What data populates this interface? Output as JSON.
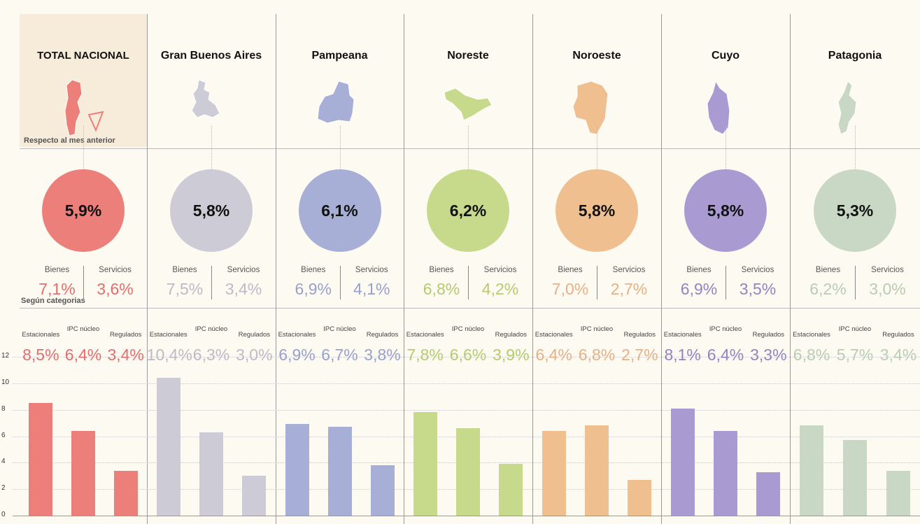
{
  "notes": {
    "monthly": "Respecto al mes anterior",
    "categories": "Según categorias"
  },
  "labels": {
    "bienes": "Bienes",
    "servicios": "Servicios",
    "estacionales": "Estacionales",
    "ipc_nucleo": "IPC núcleo",
    "regulados": "Regulados"
  },
  "regions": [
    {
      "name": "TOTAL NACIONAL",
      "color": "#ec7f7a",
      "text_color": "#e46d6d",
      "total": "5,9%",
      "bienes": "7,1%",
      "servicios": "3,6%",
      "estacionales": "8,5%",
      "nucleo": "6,4%",
      "regulados": "3,4%"
    },
    {
      "name": "Gran Buenos Aires",
      "color": "#cdcbd6",
      "text_color": "#bdbac8",
      "total": "5,8%",
      "bienes": "7,5%",
      "servicios": "3,4%",
      "estacionales": "10,4%",
      "nucleo": "6,3%",
      "regulados": "3,0%"
    },
    {
      "name": "Pampeana",
      "color": "#a8afd6",
      "text_color": "#98a0cc",
      "total": "6,1%",
      "bienes": "6,9%",
      "servicios": "4,1%",
      "estacionales": "6,9%",
      "nucleo": "6,7%",
      "regulados": "3,8%"
    },
    {
      "name": "Noreste",
      "color": "#c7da8c",
      "text_color": "#b5cb70",
      "total": "6,2%",
      "bienes": "6,8%",
      "servicios": "4,2%",
      "estacionales": "7,8%",
      "nucleo": "6,6%",
      "regulados": "3,9%"
    },
    {
      "name": "Noroeste",
      "color": "#efbf90",
      "text_color": "#e6b184",
      "total": "5,8%",
      "bienes": "7,0%",
      "servicios": "2,7%",
      "estacionales": "6,4%",
      "nucleo": "6,8%",
      "regulados": "2,7%"
    },
    {
      "name": "Cuyo",
      "color": "#a99bd2",
      "text_color": "#9283c4",
      "total": "5,8%",
      "bienes": "6,9%",
      "servicios": "3,5%",
      "estacionales": "8,1%",
      "nucleo": "6,4%",
      "regulados": "3,3%"
    },
    {
      "name": "Patagonia",
      "color": "#c9d8c4",
      "text_color": "#b9ccb4",
      "total": "5,3%",
      "bienes": "6,2%",
      "servicios": "3,0%",
      "estacionales": "6,8%",
      "nucleo": "5,7%",
      "regulados": "3,4%"
    }
  ],
  "chart_data": {
    "type": "bar",
    "categories": [
      "Estacionales",
      "IPC núcleo",
      "Regulados"
    ],
    "series": [
      {
        "name": "TOTAL NACIONAL",
        "values": [
          8.5,
          6.4,
          3.4
        ]
      },
      {
        "name": "Gran Buenos Aires",
        "values": [
          10.4,
          6.3,
          3.0
        ]
      },
      {
        "name": "Pampeana",
        "values": [
          6.9,
          6.7,
          3.8
        ]
      },
      {
        "name": "Noreste",
        "values": [
          7.8,
          6.6,
          3.9
        ]
      },
      {
        "name": "Noroeste",
        "values": [
          6.4,
          6.8,
          2.7
        ]
      },
      {
        "name": "Cuyo",
        "values": [
          8.1,
          6.4,
          3.3
        ]
      },
      {
        "name": "Patagonia",
        "values": [
          6.8,
          5.7,
          3.4
        ]
      }
    ],
    "ylim": [
      0,
      12
    ],
    "yticks": [
      "0",
      "2",
      "4",
      "6",
      "8",
      "10",
      "12"
    ],
    "grid": true
  }
}
